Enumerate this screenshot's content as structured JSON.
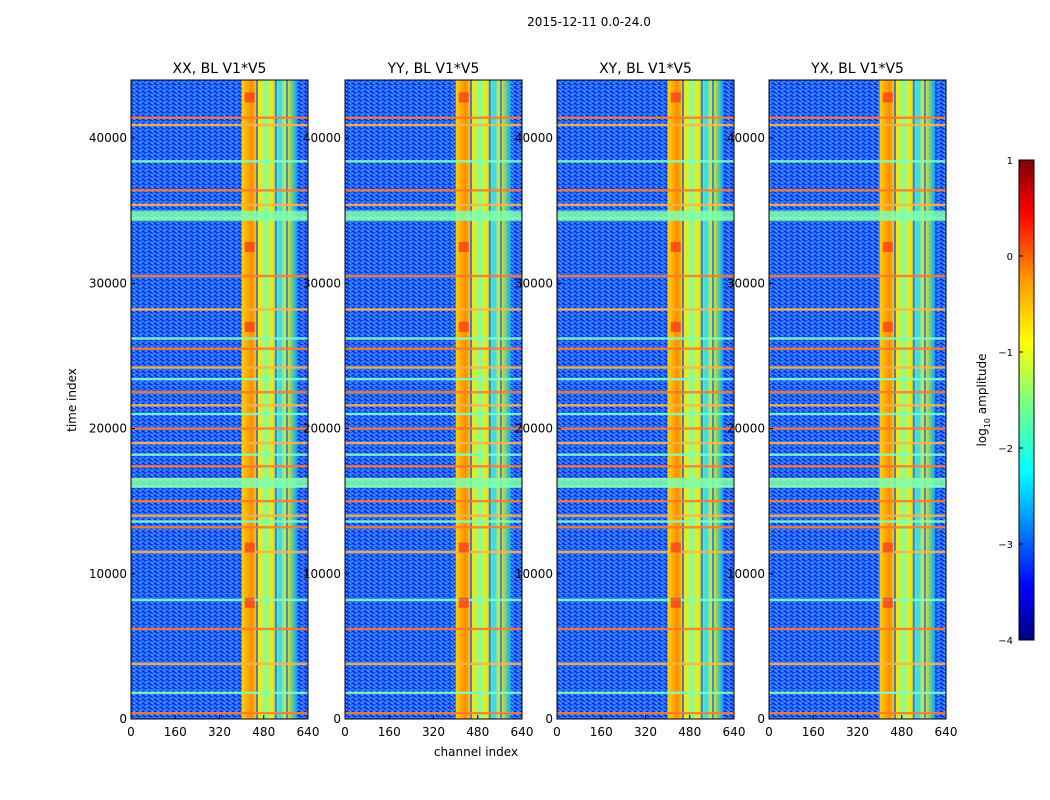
{
  "figure_title": "2015-12-11 0.0-24.0",
  "chart_data": {
    "type": "heatmap",
    "suptitle": "2015-12-11 0.0-24.0",
    "panels": [
      {
        "title": "XX, BL V1*V5",
        "polarization": "XX"
      },
      {
        "title": "YY, BL V1*V5",
        "polarization": "YY"
      },
      {
        "title": "XY, BL V1*V5",
        "polarization": "XY"
      },
      {
        "title": "YX, BL V1*V5",
        "polarization": "YX"
      }
    ],
    "xlabel": "channel index",
    "ylabel": "time index",
    "xlim": [
      0,
      640
    ],
    "ylim": [
      0,
      44000
    ],
    "xticks": [
      0,
      160,
      320,
      480,
      640
    ],
    "xtick_labels": [
      "0",
      "160",
      "320",
      "480",
      "640"
    ],
    "yticks": [
      0,
      10000,
      20000,
      30000,
      40000
    ],
    "ytick_labels": [
      "0",
      "10000",
      "20000",
      "30000",
      "40000"
    ],
    "colorbar": {
      "label_prefix": "log",
      "label_sub": "10",
      "label_suffix": " amplitude",
      "range": [
        -4,
        1
      ],
      "ticks": [
        1,
        0,
        -1,
        -2,
        -3,
        -4
      ],
      "tick_labels": [
        "1",
        "0",
        "−1",
        "−2",
        "−3",
        "−4"
      ],
      "colormap": "jet"
    },
    "features": {
      "bright_channel_band": [
        400,
        600
      ],
      "flagged_time_rows": [
        400,
        1800,
        3800,
        6200,
        8200,
        11500,
        13200,
        13600,
        14000,
        15000,
        16000,
        16500,
        17400,
        18200,
        19000,
        20000,
        21000,
        21600,
        22500,
        23400,
        24200,
        25500,
        26200,
        28200,
        30500,
        34500,
        35400,
        36400,
        38400,
        40900,
        41400
      ]
    }
  }
}
